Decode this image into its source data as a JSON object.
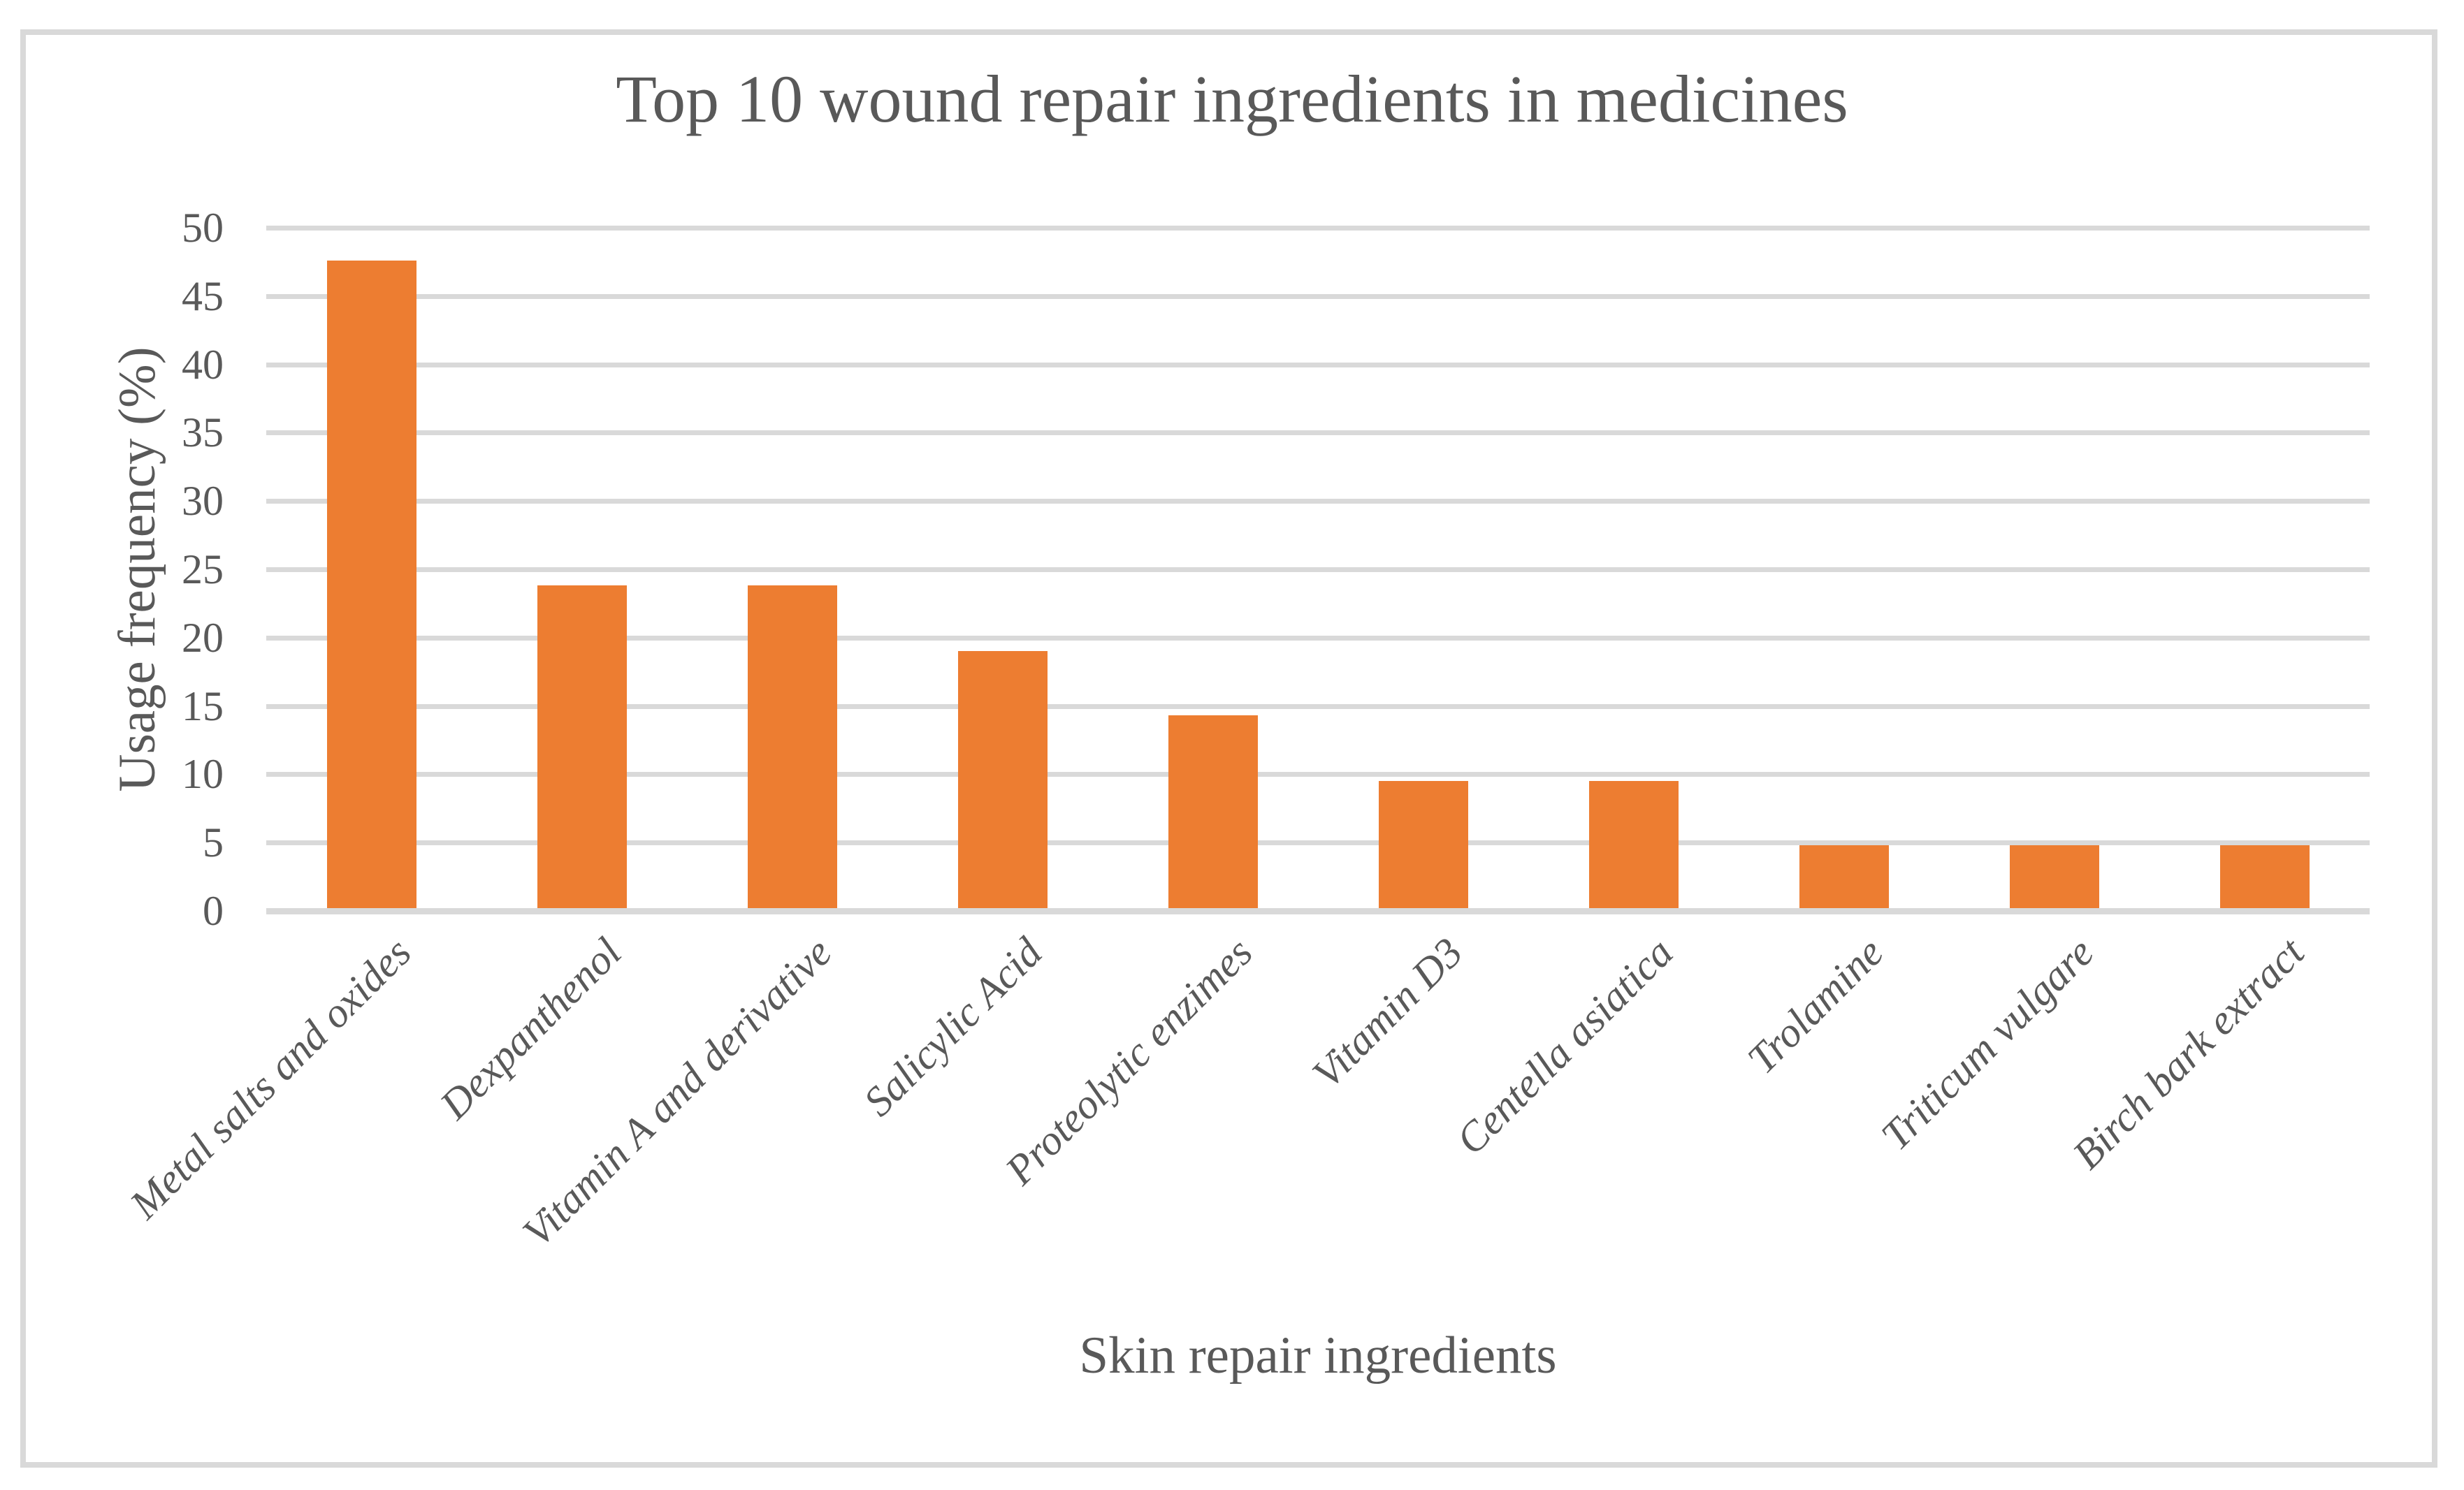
{
  "chart_data": {
    "type": "bar",
    "title": "Top 10 wound repair ingredients in medicines",
    "xlabel": "Skin repair ingredients",
    "ylabel": "Usage frequency (%)",
    "categories": [
      "Metal salts and oxides",
      "Dexpanthenol",
      "Vitamin A and derivative",
      "Salicylic Acid",
      "Proteolytic enzimes",
      "Vitamin D3",
      "Centella asiatica",
      "Trolamine",
      "Triticum vulgare",
      "Birch bark extract"
    ],
    "values": [
      47.6,
      23.8,
      23.8,
      19.0,
      14.3,
      9.5,
      9.5,
      4.8,
      4.8,
      4.8
    ],
    "ylim": [
      0,
      50
    ],
    "ytick_step": 5,
    "yticks": [
      0,
      5,
      10,
      15,
      20,
      25,
      30,
      35,
      40,
      45,
      50
    ],
    "grid": true,
    "legend": "none",
    "bar_color": "#ED7D31",
    "gridline_color": "#D9D9D9",
    "axis_line_color": "#D9D9D9",
    "text_color": "#595959",
    "frame_color": "#D9D9D9",
    "background_color": "#FFFFFF"
  }
}
